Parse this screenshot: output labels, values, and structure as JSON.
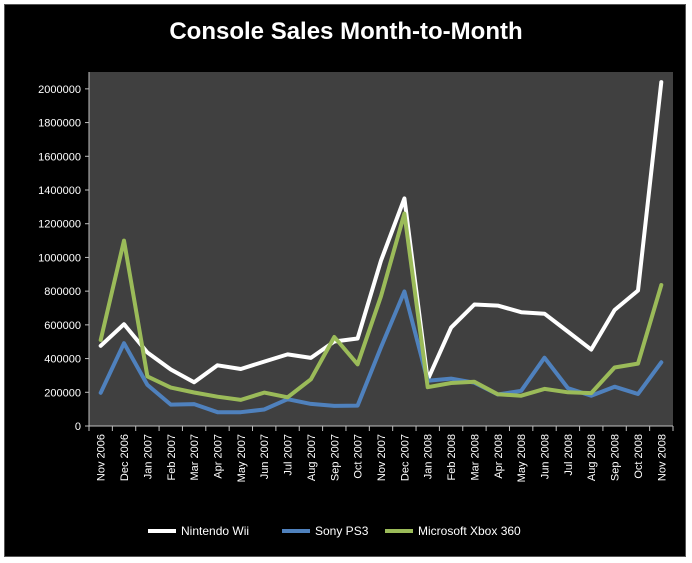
{
  "chart_data": {
    "type": "line",
    "title": "Console Sales Month-to-Month",
    "xlabel": "",
    "ylabel": "",
    "categories": [
      "Nov 2006",
      "Dec 2006",
      "Jan 2007",
      "Feb 2007",
      "Mar 2007",
      "Apr 2007",
      "May 2007",
      "Jun 2007",
      "Jul 2007",
      "Aug 2007",
      "Sep 2007",
      "Oct 2007",
      "Nov 2007",
      "Dec 2007",
      "Jan 2008",
      "Feb 2008",
      "Mar 2008",
      "Apr 2008",
      "May 2008",
      "Jun 2008",
      "Jul 2008",
      "Aug 2008",
      "Sep 2008",
      "Oct 2008",
      "Nov 2008"
    ],
    "ylim": [
      0,
      2100000
    ],
    "yticks": [
      0,
      200000,
      400000,
      600000,
      800000,
      1000000,
      1200000,
      1400000,
      1600000,
      1800000,
      2000000
    ],
    "ytick_labels": [
      "0",
      "200000",
      "400000",
      "600000",
      "800000",
      "1000000",
      "1200000",
      "1400000",
      "1600000",
      "1800000",
      "2000000"
    ],
    "grid": false,
    "legend_position": "bottom",
    "series": [
      {
        "name": "Nintendo Wii",
        "color": "#ffffff",
        "values": [
          476000,
          604000,
          436000,
          335000,
          259000,
          360000,
          338000,
          382000,
          425000,
          404000,
          501000,
          519000,
          981000,
          1350000,
          274000,
          584000,
          721000,
          714000,
          675000,
          666000,
          560000,
          453000,
          688000,
          804000,
          2040000
        ]
      },
      {
        "name": "Sony PS3",
        "color": "#4f81bd",
        "values": [
          197000,
          491000,
          244000,
          127000,
          130000,
          82000,
          82000,
          98000,
          159000,
          131000,
          119000,
          121000,
          467000,
          798000,
          269000,
          281000,
          257000,
          187000,
          209000,
          405000,
          225000,
          180000,
          233000,
          190000,
          378000
        ]
      },
      {
        "name": "Microsoft Xbox 360",
        "color": "#9bbb59",
        "values": [
          511000,
          1100000,
          294000,
          228000,
          199000,
          174000,
          155000,
          198000,
          170000,
          277000,
          528000,
          366000,
          770000,
          1260000,
          230000,
          255000,
          262000,
          188000,
          180000,
          220000,
          200000,
          195000,
          347000,
          370000,
          836000
        ]
      }
    ]
  }
}
